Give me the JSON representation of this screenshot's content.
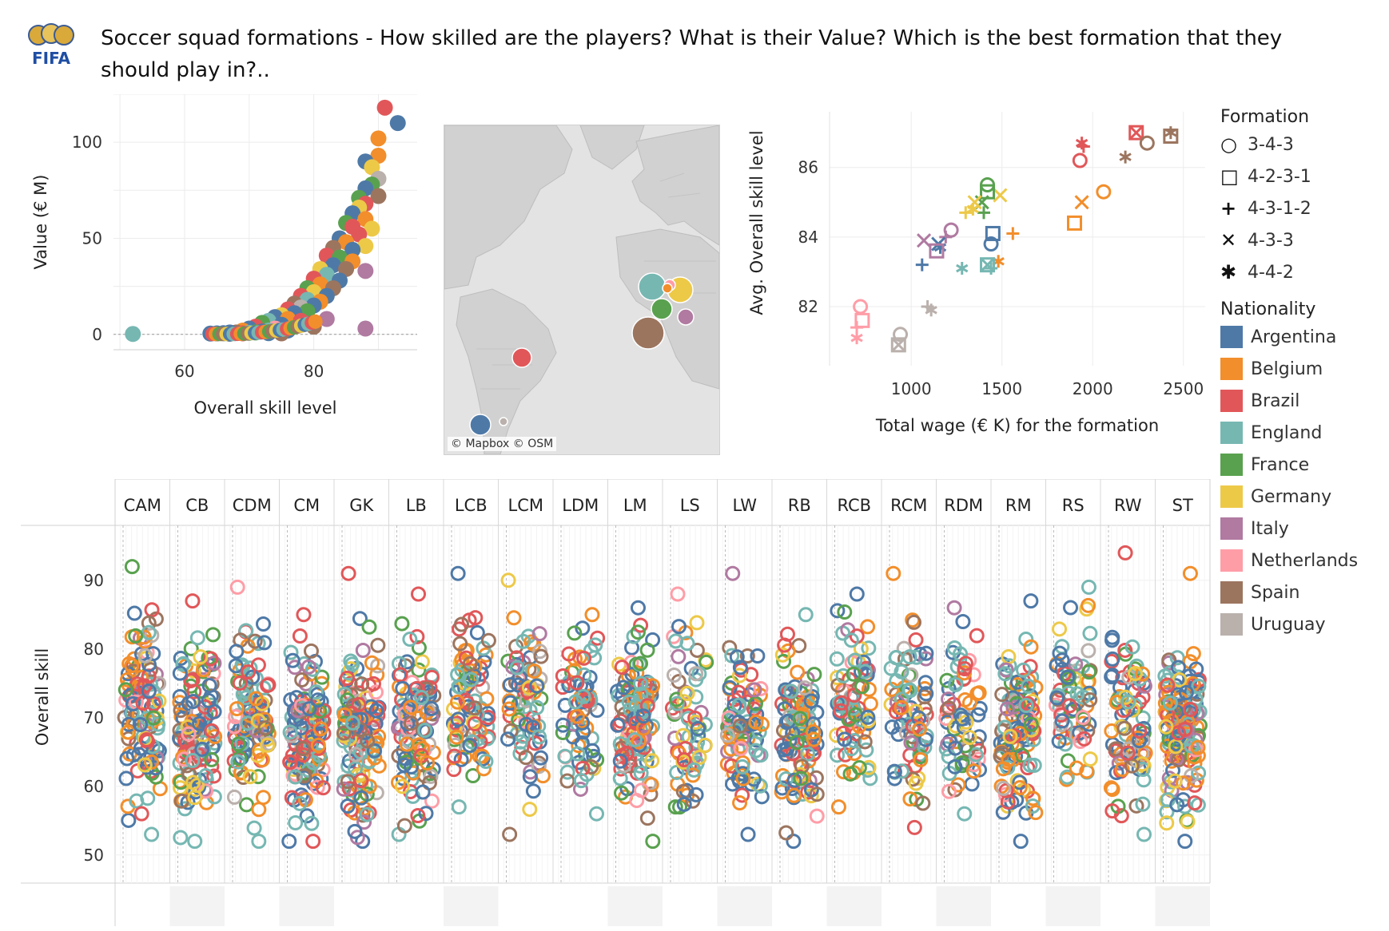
{
  "header": {
    "title": "Soccer squad formations - How skilled are the players? What is their Value? Which is the best formation that they should play in?..",
    "logo_text": "FIFA"
  },
  "colors": {
    "Argentina": "#4e79a7",
    "Belgium": "#f28e2b",
    "Brazil": "#e15759",
    "England": "#76b7b2",
    "France": "#59a14f",
    "Germany": "#edc948",
    "Italy": "#b07aa1",
    "Netherlands": "#ff9da7",
    "Spain": "#9c755f",
    "Uruguay": "#bab0ac"
  },
  "legend": {
    "formation_title": "Formation",
    "formations": [
      {
        "name": "3-4-3",
        "icon": "circle-icon"
      },
      {
        "name": "4-2-3-1",
        "icon": "square-icon"
      },
      {
        "name": "4-3-1-2",
        "icon": "plus-icon"
      },
      {
        "name": "4-3-3",
        "icon": "cross-icon"
      },
      {
        "name": "4-4-2",
        "icon": "asterisk-icon"
      }
    ],
    "nationality_title": "Nationality",
    "nationalities": [
      "Argentina",
      "Belgium",
      "Brazil",
      "England",
      "France",
      "Germany",
      "Italy",
      "Netherlands",
      "Spain",
      "Uruguay"
    ]
  },
  "map": {
    "attribution": "© Mapbox © OSM"
  },
  "chart_data": [
    {
      "id": "value_vs_skill",
      "type": "scatter",
      "xlabel": "Overall skill level",
      "ylabel": "Value (€ M)",
      "xlim": [
        49,
        96
      ],
      "ylim": [
        -8,
        125
      ],
      "xticks": [
        60,
        80
      ],
      "yticks": [
        0,
        50,
        100
      ],
      "reference_line_y": 0,
      "points": [
        {
          "x": 52,
          "y": 0.2,
          "c": "England"
        },
        {
          "x": 91,
          "y": 118,
          "c": "Brazil"
        },
        {
          "x": 93,
          "y": 110,
          "c": "Argentina"
        },
        {
          "x": 90,
          "y": 102,
          "c": "Belgium"
        },
        {
          "x": 90,
          "y": 93,
          "c": "Belgium"
        },
        {
          "x": 88,
          "y": 90,
          "c": "Argentina"
        },
        {
          "x": 89,
          "y": 87,
          "c": "Germany"
        },
        {
          "x": 90,
          "y": 81,
          "c": "Uruguay"
        },
        {
          "x": 89,
          "y": 78,
          "c": "France"
        },
        {
          "x": 88,
          "y": 76,
          "c": "Argentina"
        },
        {
          "x": 90,
          "y": 72,
          "c": "Spain"
        },
        {
          "x": 87,
          "y": 71,
          "c": "France"
        },
        {
          "x": 88,
          "y": 68,
          "c": "Brazil"
        },
        {
          "x": 87,
          "y": 66,
          "c": "Germany"
        },
        {
          "x": 86,
          "y": 63,
          "c": "Argentina"
        },
        {
          "x": 88,
          "y": 60,
          "c": "Belgium"
        },
        {
          "x": 85,
          "y": 58,
          "c": "France"
        },
        {
          "x": 86,
          "y": 56,
          "c": "Brazil"
        },
        {
          "x": 89,
          "y": 55,
          "c": "Germany"
        },
        {
          "x": 87,
          "y": 52,
          "c": "Brazil"
        },
        {
          "x": 84,
          "y": 50,
          "c": "Argentina"
        },
        {
          "x": 85,
          "y": 48,
          "c": "Belgium"
        },
        {
          "x": 88,
          "y": 46,
          "c": "Germany"
        },
        {
          "x": 83,
          "y": 45,
          "c": "Spain"
        },
        {
          "x": 86,
          "y": 44,
          "c": "Argentina"
        },
        {
          "x": 82,
          "y": 41,
          "c": "Brazil"
        },
        {
          "x": 84,
          "y": 40,
          "c": "France"
        },
        {
          "x": 86,
          "y": 38,
          "c": "Belgium"
        },
        {
          "x": 83,
          "y": 36,
          "c": "Argentina"
        },
        {
          "x": 81,
          "y": 34,
          "c": "Germany"
        },
        {
          "x": 85,
          "y": 34,
          "c": "Spain"
        },
        {
          "x": 88,
          "y": 33,
          "c": "Italy"
        },
        {
          "x": 82,
          "y": 31,
          "c": "England"
        },
        {
          "x": 80,
          "y": 29,
          "c": "Brazil"
        },
        {
          "x": 84,
          "y": 28,
          "c": "Argentina"
        },
        {
          "x": 81,
          "y": 26,
          "c": "Belgium"
        },
        {
          "x": 79,
          "y": 24,
          "c": "France"
        },
        {
          "x": 83,
          "y": 24,
          "c": "Spain"
        },
        {
          "x": 80,
          "y": 22,
          "c": "Germany"
        },
        {
          "x": 78,
          "y": 20,
          "c": "Brazil"
        },
        {
          "x": 82,
          "y": 20,
          "c": "Argentina"
        },
        {
          "x": 79,
          "y": 18,
          "c": "England"
        },
        {
          "x": 81,
          "y": 17,
          "c": "Belgium"
        },
        {
          "x": 77,
          "y": 16,
          "c": "Spain"
        },
        {
          "x": 80,
          "y": 15,
          "c": "Argentina"
        },
        {
          "x": 78,
          "y": 14,
          "c": "Uruguay"
        },
        {
          "x": 76,
          "y": 13,
          "c": "Brazil"
        },
        {
          "x": 79,
          "y": 12,
          "c": "France"
        },
        {
          "x": 77,
          "y": 11,
          "c": "Argentina"
        },
        {
          "x": 75,
          "y": 10,
          "c": "Germany"
        },
        {
          "x": 82,
          "y": 8,
          "c": "Italy"
        },
        {
          "x": 74,
          "y": 9,
          "c": "Argentina"
        },
        {
          "x": 76,
          "y": 8,
          "c": "Belgium"
        },
        {
          "x": 73,
          "y": 7,
          "c": "England"
        },
        {
          "x": 78,
          "y": 7,
          "c": "Brazil"
        },
        {
          "x": 80,
          "y": 4,
          "c": "Spain"
        },
        {
          "x": 72,
          "y": 6,
          "c": "France"
        },
        {
          "x": 75,
          "y": 5,
          "c": "Argentina"
        },
        {
          "x": 71,
          "y": 4,
          "c": "Brazil"
        },
        {
          "x": 74,
          "y": 3,
          "c": "Netherlands"
        },
        {
          "x": 70,
          "y": 3,
          "c": "Argentina"
        },
        {
          "x": 73,
          "y": 2,
          "c": "England"
        },
        {
          "x": 69,
          "y": 2,
          "c": "Belgium"
        },
        {
          "x": 72,
          "y": 1.5,
          "c": "Argentina"
        },
        {
          "x": 68,
          "y": 1,
          "c": "Spain"
        },
        {
          "x": 71,
          "y": 1,
          "c": "France"
        },
        {
          "x": 67,
          "y": 1,
          "c": "Argentina"
        },
        {
          "x": 70,
          "y": 0.8,
          "c": "England"
        },
        {
          "x": 66,
          "y": 0.6,
          "c": "Argentina"
        },
        {
          "x": 69,
          "y": 0.5,
          "c": "Brazil"
        },
        {
          "x": 65,
          "y": 0.5,
          "c": "Argentina"
        },
        {
          "x": 64,
          "y": 0.4,
          "c": "Argentina"
        },
        {
          "x": 67,
          "y": 0.3,
          "c": "Argentina"
        },
        {
          "x": 73,
          "y": 0.6,
          "c": "Argentina"
        },
        {
          "x": 76,
          "y": 2,
          "c": "Argentina"
        },
        {
          "x": 88,
          "y": 3,
          "c": "Italy"
        },
        {
          "x": 75,
          "y": 0.5,
          "c": "Spain"
        }
      ]
    },
    {
      "id": "wage_vs_skill",
      "type": "scatter",
      "xlabel": "Total wage (€ K) for the formation",
      "ylabel": "Avg. Overall skill level",
      "xlim": [
        550,
        2620
      ],
      "ylim": [
        80.3,
        87.6
      ],
      "xticks": [
        1000,
        1500,
        2000,
        2500
      ],
      "yticks": [
        82,
        84,
        86
      ],
      "points": [
        {
          "x": 2240,
          "y": 87.0,
          "c": "Brazil",
          "f": "4-2-3-1"
        },
        {
          "x": 2240,
          "y": 87.0,
          "c": "Brazil",
          "f": "4-3-3"
        },
        {
          "x": 2430,
          "y": 87.0,
          "c": "Spain",
          "f": "4-4-2"
        },
        {
          "x": 2430,
          "y": 86.9,
          "c": "Spain",
          "f": "4-2-3-1"
        },
        {
          "x": 2300,
          "y": 86.7,
          "c": "Spain",
          "f": "3-4-3"
        },
        {
          "x": 2180,
          "y": 86.3,
          "c": "Spain",
          "f": "4-4-2"
        },
        {
          "x": 1940,
          "y": 86.7,
          "c": "Brazil",
          "f": "4-4-2"
        },
        {
          "x": 1950,
          "y": 86.6,
          "c": "Brazil",
          "f": "4-3-1-2"
        },
        {
          "x": 1930,
          "y": 86.2,
          "c": "Brazil",
          "f": "3-4-3"
        },
        {
          "x": 2060,
          "y": 85.3,
          "c": "Belgium",
          "f": "3-4-3"
        },
        {
          "x": 1940,
          "y": 85.0,
          "c": "Belgium",
          "f": "4-3-3"
        },
        {
          "x": 1900,
          "y": 84.4,
          "c": "Belgium",
          "f": "4-2-3-1"
        },
        {
          "x": 1560,
          "y": 84.1,
          "c": "Belgium",
          "f": "4-3-1-2"
        },
        {
          "x": 1480,
          "y": 83.3,
          "c": "Belgium",
          "f": "4-4-2"
        },
        {
          "x": 1490,
          "y": 85.2,
          "c": "Germany",
          "f": "4-3-3"
        },
        {
          "x": 1420,
          "y": 85.5,
          "c": "France",
          "f": "3-4-3"
        },
        {
          "x": 1420,
          "y": 85.3,
          "c": "France",
          "f": "4-2-3-1"
        },
        {
          "x": 1390,
          "y": 85.0,
          "c": "France",
          "f": "4-3-3"
        },
        {
          "x": 1400,
          "y": 84.7,
          "c": "France",
          "f": "4-3-1-2"
        },
        {
          "x": 1350,
          "y": 85.0,
          "c": "Germany",
          "f": "4-3-3"
        },
        {
          "x": 1300,
          "y": 84.7,
          "c": "Germany",
          "f": "4-3-1-2"
        },
        {
          "x": 1340,
          "y": 84.8,
          "c": "Germany",
          "f": "4-4-2"
        },
        {
          "x": 1450,
          "y": 84.1,
          "c": "Argentina",
          "f": "4-2-3-1"
        },
        {
          "x": 1440,
          "y": 83.8,
          "c": "Argentina",
          "f": "3-4-3"
        },
        {
          "x": 1440,
          "y": 83.1,
          "c": "England",
          "f": "4-3-1-2"
        },
        {
          "x": 1420,
          "y": 83.2,
          "c": "England",
          "f": "4-2-3-1"
        },
        {
          "x": 1420,
          "y": 83.2,
          "c": "England",
          "f": "4-3-3"
        },
        {
          "x": 1280,
          "y": 83.1,
          "c": "England",
          "f": "4-4-2"
        },
        {
          "x": 1220,
          "y": 84.2,
          "c": "Italy",
          "f": "3-4-3"
        },
        {
          "x": 1190,
          "y": 84.0,
          "c": "Italy",
          "f": "4-3-1-2"
        },
        {
          "x": 1070,
          "y": 83.9,
          "c": "Italy",
          "f": "4-3-3"
        },
        {
          "x": 1160,
          "y": 83.7,
          "c": "Argentina",
          "f": "4-4-2"
        },
        {
          "x": 1150,
          "y": 83.8,
          "c": "Argentina",
          "f": "4-3-3"
        },
        {
          "x": 1140,
          "y": 83.6,
          "c": "Italy",
          "f": "4-2-3-1"
        },
        {
          "x": 1060,
          "y": 83.2,
          "c": "Argentina",
          "f": "4-3-1-2"
        },
        {
          "x": 1090,
          "y": 82.0,
          "c": "Uruguay",
          "f": "4-3-1-2"
        },
        {
          "x": 1110,
          "y": 81.9,
          "c": "Uruguay",
          "f": "4-4-2"
        },
        {
          "x": 940,
          "y": 81.2,
          "c": "Uruguay",
          "f": "3-4-3"
        },
        {
          "x": 930,
          "y": 80.9,
          "c": "Uruguay",
          "f": "4-2-3-1"
        },
        {
          "x": 930,
          "y": 80.9,
          "c": "Uruguay",
          "f": "4-3-3"
        },
        {
          "x": 720,
          "y": 82.0,
          "c": "Netherlands",
          "f": "3-4-3"
        },
        {
          "x": 730,
          "y": 81.6,
          "c": "Netherlands",
          "f": "4-2-3-1"
        },
        {
          "x": 700,
          "y": 81.4,
          "c": "Netherlands",
          "f": "4-3-1-2"
        },
        {
          "x": 700,
          "y": 81.1,
          "c": "Netherlands",
          "f": "4-4-2"
        }
      ]
    },
    {
      "id": "skill_by_position",
      "type": "scatter",
      "ylabel": "Overall skill",
      "ylim": [
        48,
        98
      ],
      "yticks": [
        50,
        60,
        70,
        80,
        90
      ],
      "categories": [
        "CAM",
        "CB",
        "CDM",
        "CM",
        "GK",
        "LB",
        "LCB",
        "LCM",
        "LDM",
        "LM",
        "LS",
        "LW",
        "RB",
        "RCB",
        "RCM",
        "RDM",
        "RM",
        "RS",
        "RW",
        "ST"
      ],
      "positions": [
        {
          "pos": "CAM",
          "n": 120,
          "min": 53,
          "max": 92,
          "mean": 70
        },
        {
          "pos": "CB",
          "n": 130,
          "min": 52,
          "max": 87,
          "mean": 68
        },
        {
          "pos": "CDM",
          "n": 110,
          "min": 52,
          "max": 89,
          "mean": 69
        },
        {
          "pos": "CM",
          "n": 130,
          "min": 52,
          "max": 85,
          "mean": 67
        },
        {
          "pos": "GK",
          "n": 140,
          "min": 52,
          "max": 91,
          "mean": 68
        },
        {
          "pos": "LB",
          "n": 110,
          "min": 53,
          "max": 88,
          "mean": 68
        },
        {
          "pos": "LCB",
          "n": 90,
          "min": 57,
          "max": 91,
          "mean": 72
        },
        {
          "pos": "LCM",
          "n": 80,
          "min": 53,
          "max": 90,
          "mean": 71
        },
        {
          "pos": "LDM",
          "n": 70,
          "min": 56,
          "max": 85,
          "mean": 71
        },
        {
          "pos": "LM",
          "n": 120,
          "min": 52,
          "max": 86,
          "mean": 69
        },
        {
          "pos": "LS",
          "n": 70,
          "min": 57,
          "max": 88,
          "mean": 70
        },
        {
          "pos": "LW",
          "n": 90,
          "min": 53,
          "max": 91,
          "mean": 68
        },
        {
          "pos": "RB",
          "n": 110,
          "min": 52,
          "max": 85,
          "mean": 68
        },
        {
          "pos": "RCB",
          "n": 90,
          "min": 57,
          "max": 88,
          "mean": 72
        },
        {
          "pos": "RCM",
          "n": 80,
          "min": 54,
          "max": 91,
          "mean": 70
        },
        {
          "pos": "RDM",
          "n": 70,
          "min": 56,
          "max": 86,
          "mean": 71
        },
        {
          "pos": "RM",
          "n": 120,
          "min": 52,
          "max": 87,
          "mean": 68
        },
        {
          "pos": "RS",
          "n": 70,
          "min": 61,
          "max": 89,
          "mean": 73
        },
        {
          "pos": "RW",
          "n": 90,
          "min": 53,
          "max": 94,
          "mean": 69
        },
        {
          "pos": "ST",
          "n": 150,
          "min": 52,
          "max": 91,
          "mean": 68
        }
      ]
    }
  ]
}
